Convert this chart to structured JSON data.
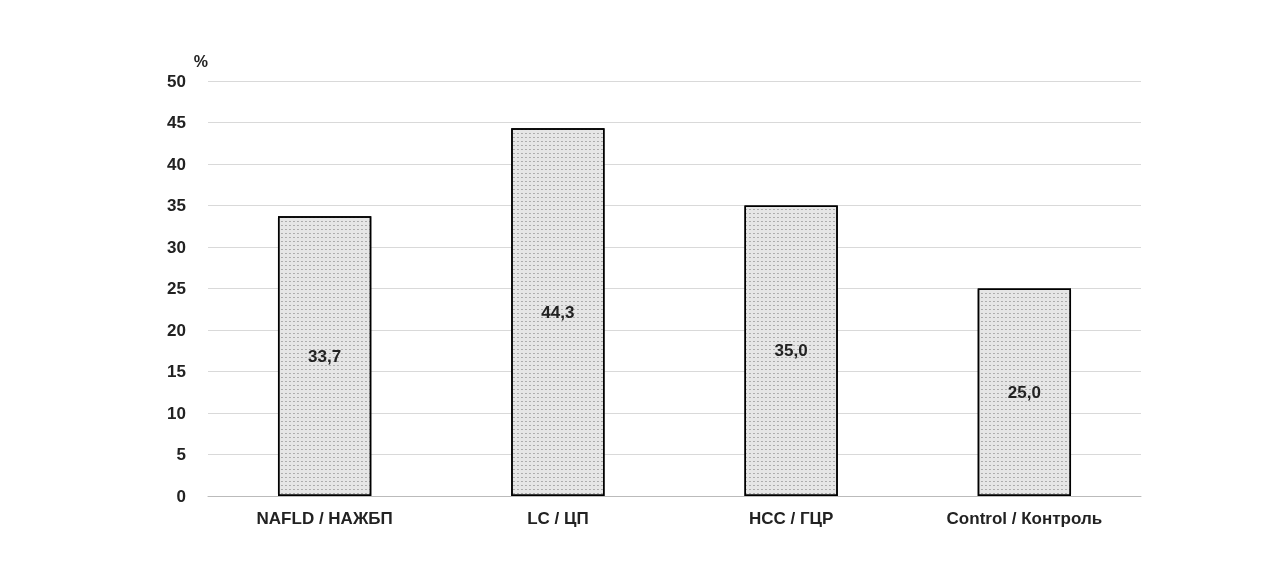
{
  "chart_data": {
    "type": "bar",
    "ylabel": "%",
    "categories": [
      "NAFLD / НАЖБП",
      "LC / ЦП",
      "HCC / ГЦР",
      "Control / Контроль"
    ],
    "values": [
      33.7,
      44.3,
      35.0,
      25.0
    ],
    "value_labels": [
      "33,7",
      "44,3",
      "35,0",
      "25,0"
    ],
    "color": "#e6e6e6",
    "ylim": [
      0,
      50
    ],
    "yticks": [
      0,
      5,
      10,
      15,
      20,
      25,
      30,
      35,
      40,
      45,
      50
    ],
    "grid": "y"
  }
}
